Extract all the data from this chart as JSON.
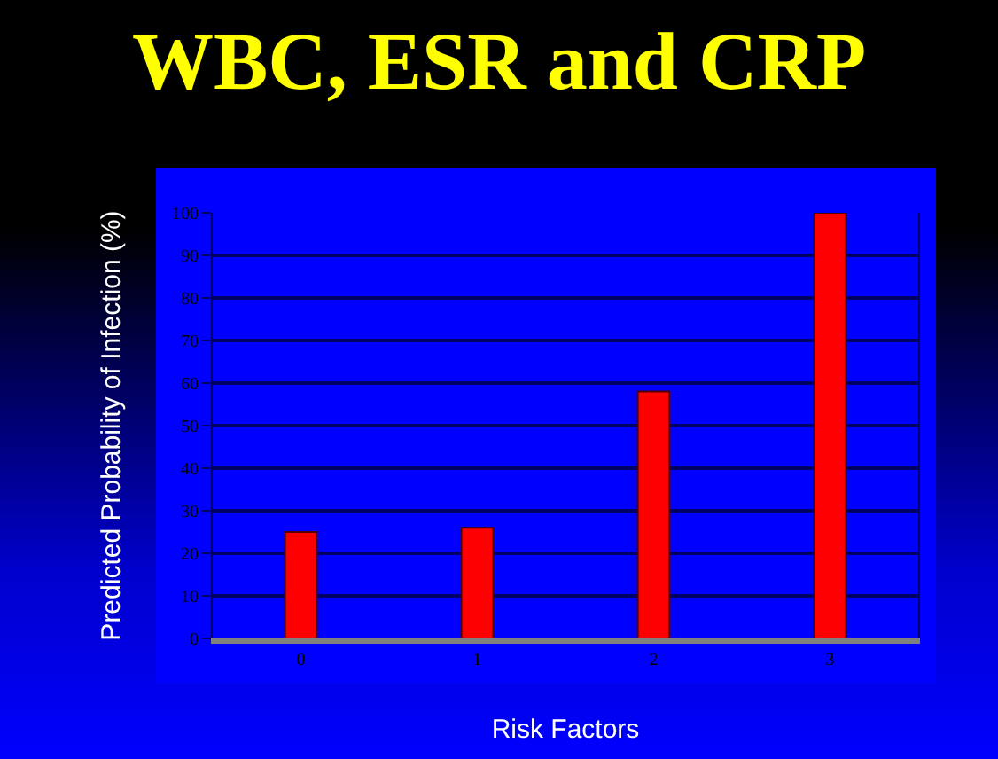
{
  "chart_data": {
    "type": "bar",
    "title": "WBC, ESR and CRP",
    "xlabel": "Risk Factors",
    "ylabel": "Predicted Probability of Infection (%)",
    "categories": [
      "0",
      "1",
      "2",
      "3"
    ],
    "values": [
      25,
      26,
      58,
      100
    ],
    "color": "#ff0000",
    "ylim": [
      0,
      100
    ],
    "yticks": [
      0,
      10,
      20,
      30,
      40,
      50,
      60,
      70,
      80,
      90,
      100
    ],
    "grid": "y"
  }
}
